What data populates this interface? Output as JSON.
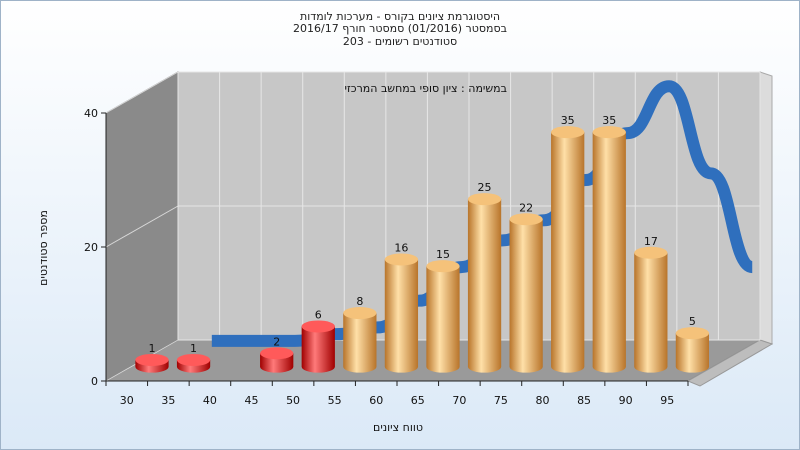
{
  "title_lines": [
    "היסטוגרמת ציונים בקורס - מערכות לומדות",
    "בסמסטר (01/2016) סמסטר חורף 2016/17",
    "סטודנטים רשומים - 203"
  ],
  "chart_data": {
    "type": "bar",
    "annotation": "במשימה : ציון סופי במחשב המרכזי",
    "xlabel": "טווח ציונים",
    "ylabel": "מספר סטודנטים",
    "categories": [
      "30",
      "35",
      "40",
      "45",
      "50",
      "55",
      "60",
      "65",
      "70",
      "75",
      "80",
      "85",
      "90",
      "95"
    ],
    "values": [
      1,
      1,
      0,
      2,
      6,
      8,
      16,
      15,
      25,
      22,
      35,
      35,
      17,
      5
    ],
    "failing_below": 55,
    "ylim": [
      0,
      40
    ],
    "yticks": [
      0,
      20,
      40
    ],
    "grid": true,
    "colors": {
      "fail": "#e0161a",
      "pass": "#e8a550",
      "curve": "#2f6fbd",
      "back": "#c8c8c8",
      "side": "#808080"
    }
  }
}
